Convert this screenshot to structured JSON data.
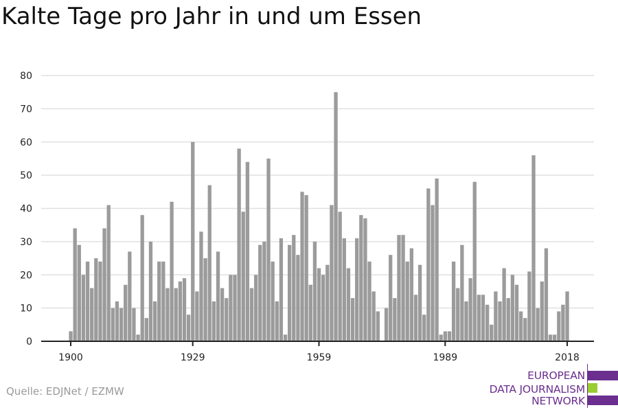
{
  "title": "Kalte Tage pro Jahr in und um Essen",
  "source": "Quelle: EDJNet / EZMW",
  "logo": {
    "lines": [
      "EUROPEAN",
      "DATA JOURNALISM",
      "NETWORK"
    ],
    "purple": "#6a2f8f",
    "green": "#9acd32"
  },
  "chart_data": {
    "type": "bar",
    "title": "Kalte Tage pro Jahr in und um Essen",
    "xlabel": "",
    "ylabel": "",
    "ylim": [
      0,
      80
    ],
    "yticks": [
      0,
      10,
      20,
      30,
      40,
      50,
      60,
      70,
      80
    ],
    "xticks": [
      1900,
      1929,
      1959,
      1989,
      2018
    ],
    "grid": true,
    "bar_color": "#9b9b9b",
    "x_start": 1900,
    "values": [
      3,
      34,
      29,
      20,
      24,
      16,
      25,
      24,
      34,
      41,
      10,
      12,
      10,
      17,
      27,
      10,
      2,
      38,
      7,
      30,
      12,
      24,
      24,
      16,
      42,
      16,
      18,
      19,
      8,
      60,
      15,
      33,
      25,
      47,
      12,
      27,
      16,
      13,
      20,
      20,
      58,
      39,
      54,
      16,
      20,
      29,
      30,
      55,
      24,
      12,
      31,
      2,
      29,
      32,
      26,
      45,
      44,
      17,
      30,
      22,
      20,
      23,
      41,
      75,
      39,
      31,
      22,
      13,
      31,
      38,
      37,
      24,
      15,
      9,
      0,
      10,
      26,
      13,
      32,
      32,
      24,
      28,
      14,
      23,
      8,
      46,
      41,
      49,
      2,
      3,
      3,
      24,
      16,
      29,
      12,
      19,
      48,
      14,
      14,
      11,
      5,
      15,
      12,
      22,
      13,
      20,
      17,
      9,
      7,
      21,
      56,
      10,
      18,
      28,
      2,
      2,
      9,
      11,
      15
    ]
  }
}
